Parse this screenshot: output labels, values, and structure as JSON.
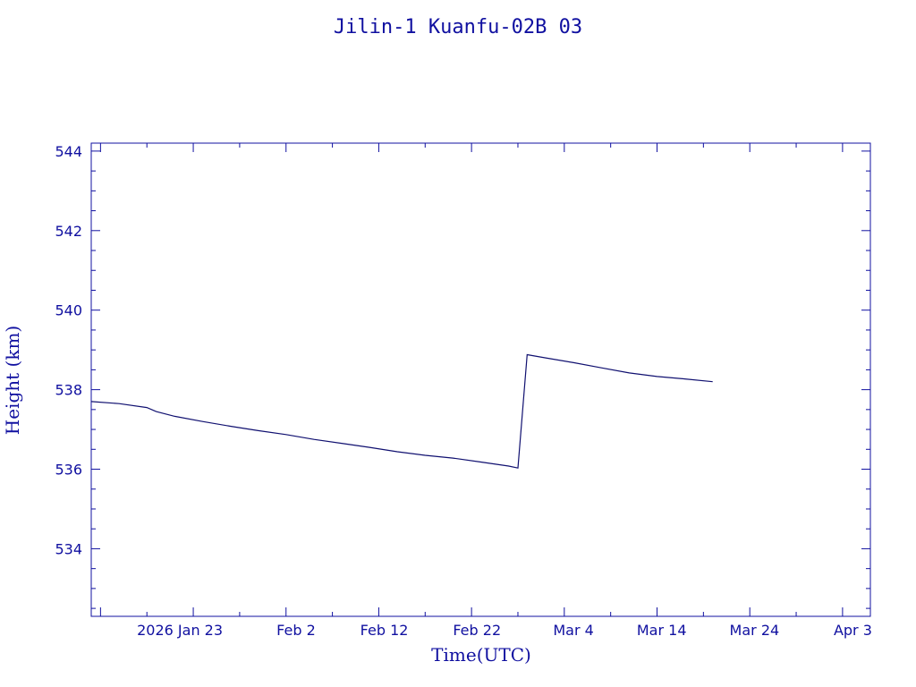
{
  "chart_data": {
    "type": "line",
    "title": "Jilin-1 Kuanfu-02B 03",
    "xlabel": "Time(UTC)",
    "ylabel": "Height (km)",
    "x_axis_kind": "date",
    "xlim": [
      "2026-01-12",
      "2026-04-06"
    ],
    "ylim": [
      532.3,
      544.2
    ],
    "x_ticks": [
      {
        "date": "2026-01-23",
        "label": "2026 Jan 23"
      },
      {
        "date": "2026-02-02",
        "label": "Feb  2"
      },
      {
        "date": "2026-02-12",
        "label": "Feb 12"
      },
      {
        "date": "2026-02-22",
        "label": "Feb 22"
      },
      {
        "date": "2026-03-04",
        "label": "Mar  4"
      },
      {
        "date": "2026-03-14",
        "label": "Mar 14"
      },
      {
        "date": "2026-03-24",
        "label": "Mar 24"
      },
      {
        "date": "2026-04-03",
        "label": "Apr  3"
      }
    ],
    "y_ticks": [
      534,
      536,
      538,
      540,
      542,
      544
    ],
    "line_color": "#101070",
    "axis_color": "#1010a0",
    "series": [
      {
        "x": [
          "2026-01-12",
          "2026-01-15",
          "2026-01-18",
          "2026-01-19",
          "2026-01-21",
          "2026-01-24",
          "2026-01-27",
          "2026-01-30",
          "2026-02-02",
          "2026-02-05",
          "2026-02-08",
          "2026-02-11",
          "2026-02-14",
          "2026-02-17",
          "2026-02-20",
          "2026-02-23",
          "2026-02-26",
          "2026-02-27",
          "2026-02-28",
          "2026-03-02",
          "2026-03-05",
          "2026-03-08",
          "2026-03-11",
          "2026-03-14",
          "2026-03-17",
          "2026-03-20"
        ],
        "y": [
          537.7,
          537.65,
          537.55,
          537.45,
          537.33,
          537.2,
          537.08,
          536.97,
          536.87,
          536.75,
          536.65,
          536.55,
          536.44,
          536.35,
          536.28,
          536.18,
          536.08,
          536.03,
          538.88,
          538.8,
          538.68,
          538.55,
          538.42,
          538.33,
          538.27,
          538.2
        ]
      }
    ]
  }
}
